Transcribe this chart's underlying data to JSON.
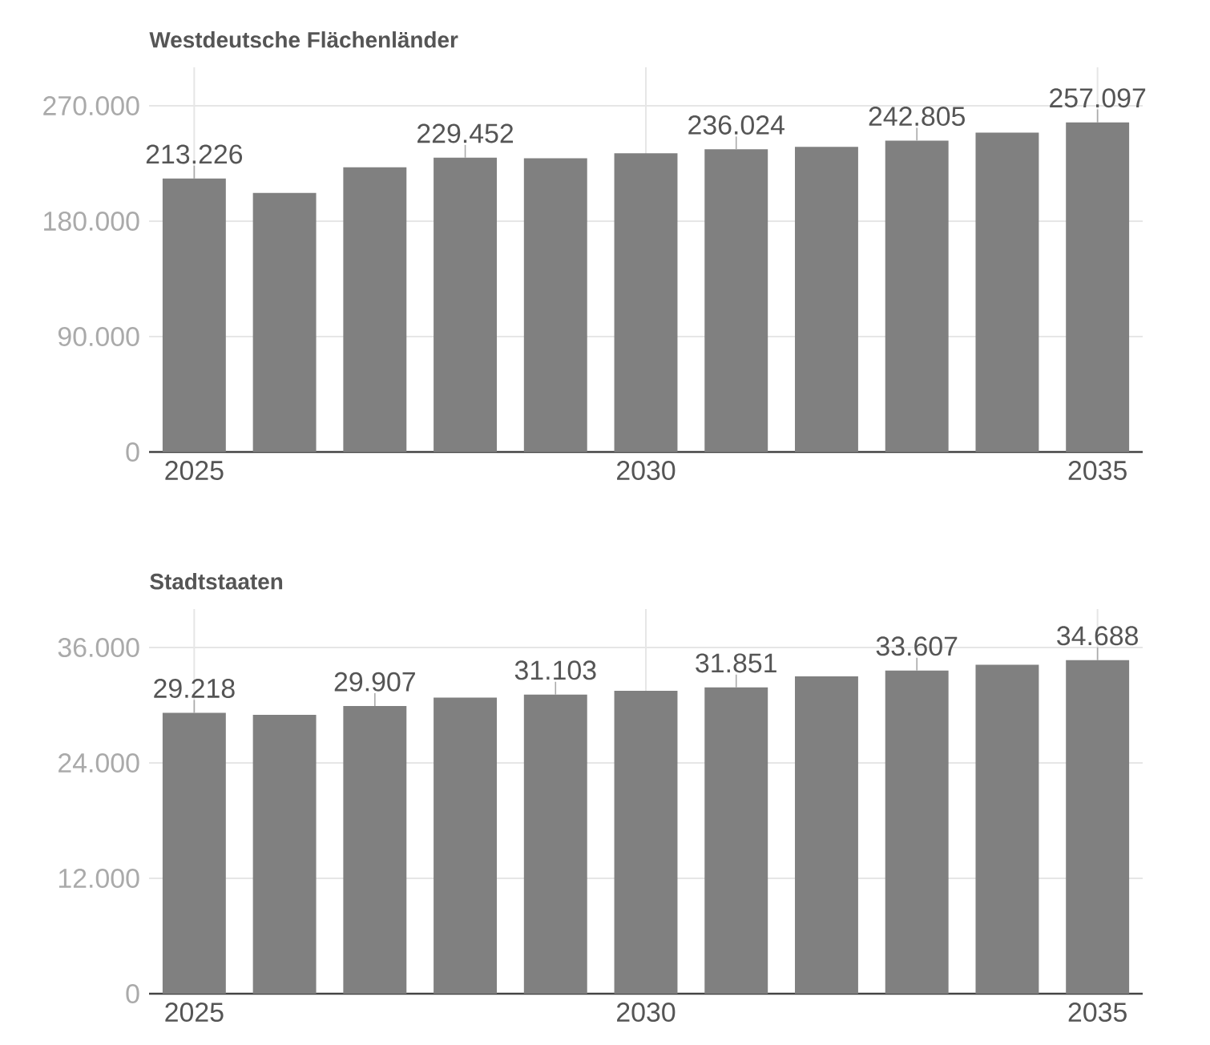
{
  "chart_data": [
    {
      "type": "bar",
      "title": "Westdeutsche Flächenländer",
      "x": [
        2025,
        2026,
        2027,
        2028,
        2029,
        2030,
        2031,
        2032,
        2033,
        2034,
        2035
      ],
      "series": [
        {
          "color": "#808080",
          "values": [
            213226,
            202000,
            222000,
            229452,
            229000,
            233000,
            236024,
            238000,
            242805,
            249000,
            257097
          ],
          "value_labels": [
            "213.226",
            null,
            null,
            "229.452",
            null,
            null,
            "236.024",
            null,
            "242.805",
            null,
            "257.097"
          ]
        }
      ],
      "xlim": [
        2024.5,
        2035.5
      ],
      "xticks": [
        2025,
        2030,
        2035
      ],
      "ylim": [
        0,
        300000
      ],
      "yticks": [
        {
          "value": 0,
          "label": "0"
        },
        {
          "value": 90000,
          "label": "90.000"
        },
        {
          "value": 180000,
          "label": "180.000"
        },
        {
          "value": 270000,
          "label": "270.000"
        }
      ],
      "grid": true
    },
    {
      "type": "bar",
      "title": "Stadtstaaten",
      "x": [
        2025,
        2026,
        2027,
        2028,
        2029,
        2030,
        2031,
        2032,
        2033,
        2034,
        2035
      ],
      "series": [
        {
          "color": "#808080",
          "values": [
            29218,
            29000,
            29907,
            30800,
            31103,
            31500,
            31851,
            33000,
            33607,
            34200,
            34688
          ],
          "value_labels": [
            "29.218",
            null,
            "29.907",
            null,
            "31.103",
            null,
            "31.851",
            null,
            "33.607",
            null,
            "34.688"
          ]
        }
      ],
      "xlim": [
        2024.5,
        2035.5
      ],
      "xticks": [
        2025,
        2030,
        2035
      ],
      "ylim": [
        0,
        40000
      ],
      "yticks": [
        {
          "value": 0,
          "label": "0"
        },
        {
          "value": 12000,
          "label": "12.000"
        },
        {
          "value": 24000,
          "label": "24.000"
        },
        {
          "value": 36000,
          "label": "36.000"
        }
      ],
      "grid": true
    }
  ]
}
